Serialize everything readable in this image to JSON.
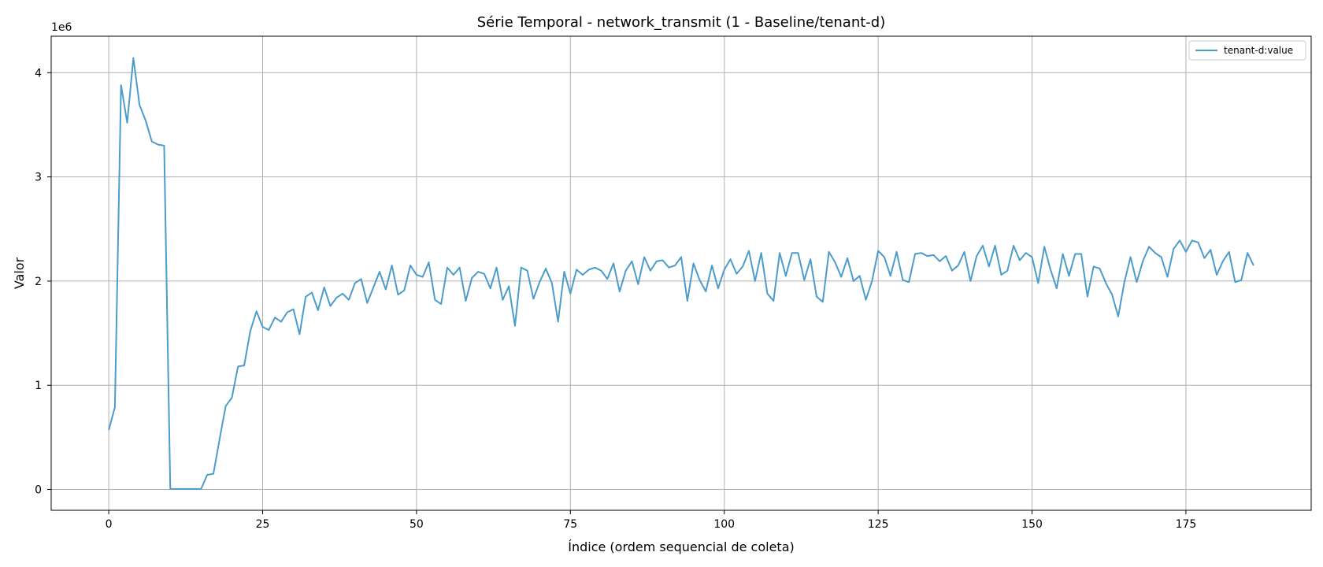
{
  "chart_data": {
    "type": "line",
    "title": "Série Temporal - network_transmit (1 - Baseline/tenant-d)",
    "xlabel": "Índice (ordem sequencial de coleta)",
    "ylabel": "Valor",
    "y_offset_label": "1e6",
    "y_unit_scale": 1000000,
    "xlim": [
      -9.35,
      195.35
    ],
    "ylim": [
      -200000,
      4350000
    ],
    "x_ticks": [
      0,
      25,
      50,
      75,
      100,
      125,
      150,
      175
    ],
    "x_tick_labels": [
      "0",
      "25",
      "50",
      "75",
      "100",
      "125",
      "150",
      "175"
    ],
    "y_ticks": [
      0,
      1000000,
      2000000,
      3000000,
      4000000
    ],
    "y_tick_labels": [
      "0",
      "1",
      "2",
      "3",
      "4"
    ],
    "grid": true,
    "legend_position": "top-right",
    "series": [
      {
        "name": "tenant-d:value",
        "color": "#4c9ccb",
        "x_start": 0,
        "values": [
          570000,
          790000,
          3880000,
          3520000,
          4140000,
          3690000,
          3540000,
          3340000,
          3310000,
          3300000,
          5000,
          5000,
          5000,
          5000,
          5000,
          5000,
          140000,
          150000,
          480000,
          800000,
          880000,
          1180000,
          1190000,
          1520000,
          1710000,
          1560000,
          1530000,
          1650000,
          1610000,
          1700000,
          1730000,
          1490000,
          1850000,
          1890000,
          1720000,
          1940000,
          1760000,
          1840000,
          1880000,
          1820000,
          1980000,
          2020000,
          1790000,
          1940000,
          2090000,
          1920000,
          2150000,
          1870000,
          1910000,
          2150000,
          2060000,
          2040000,
          2180000,
          1820000,
          1780000,
          2130000,
          2060000,
          2130000,
          1810000,
          2030000,
          2090000,
          2070000,
          1930000,
          2130000,
          1820000,
          1950000,
          1570000,
          2130000,
          2100000,
          1830000,
          1990000,
          2120000,
          1980000,
          1610000,
          2090000,
          1880000,
          2110000,
          2060000,
          2110000,
          2130000,
          2100000,
          2020000,
          2170000,
          1900000,
          2100000,
          2190000,
          1970000,
          2230000,
          2100000,
          2190000,
          2200000,
          2130000,
          2150000,
          2230000,
          1810000,
          2170000,
          2010000,
          1900000,
          2150000,
          1930000,
          2110000,
          2210000,
          2070000,
          2140000,
          2290000,
          2000000,
          2270000,
          1880000,
          1810000,
          2270000,
          2050000,
          2270000,
          2270000,
          2010000,
          2210000,
          1850000,
          1800000,
          2280000,
          2180000,
          2040000,
          2220000,
          2000000,
          2050000,
          1820000,
          2000000,
          2290000,
          2230000,
          2050000,
          2280000,
          2010000,
          1990000,
          2260000,
          2270000,
          2240000,
          2250000,
          2190000,
          2240000,
          2100000,
          2150000,
          2280000,
          2000000,
          2240000,
          2340000,
          2140000,
          2340000,
          2060000,
          2100000,
          2340000,
          2200000,
          2270000,
          2230000,
          1980000,
          2330000,
          2110000,
          1930000,
          2260000,
          2050000,
          2260000,
          2260000,
          1850000,
          2140000,
          2120000,
          1980000,
          1870000,
          1660000,
          1990000,
          2230000,
          1990000,
          2190000,
          2330000,
          2270000,
          2230000,
          2040000,
          2310000,
          2390000,
          2280000,
          2390000,
          2370000,
          2220000,
          2300000,
          2060000,
          2190000,
          2280000,
          1990000,
          2010000,
          2270000,
          2150000
        ]
      }
    ]
  }
}
